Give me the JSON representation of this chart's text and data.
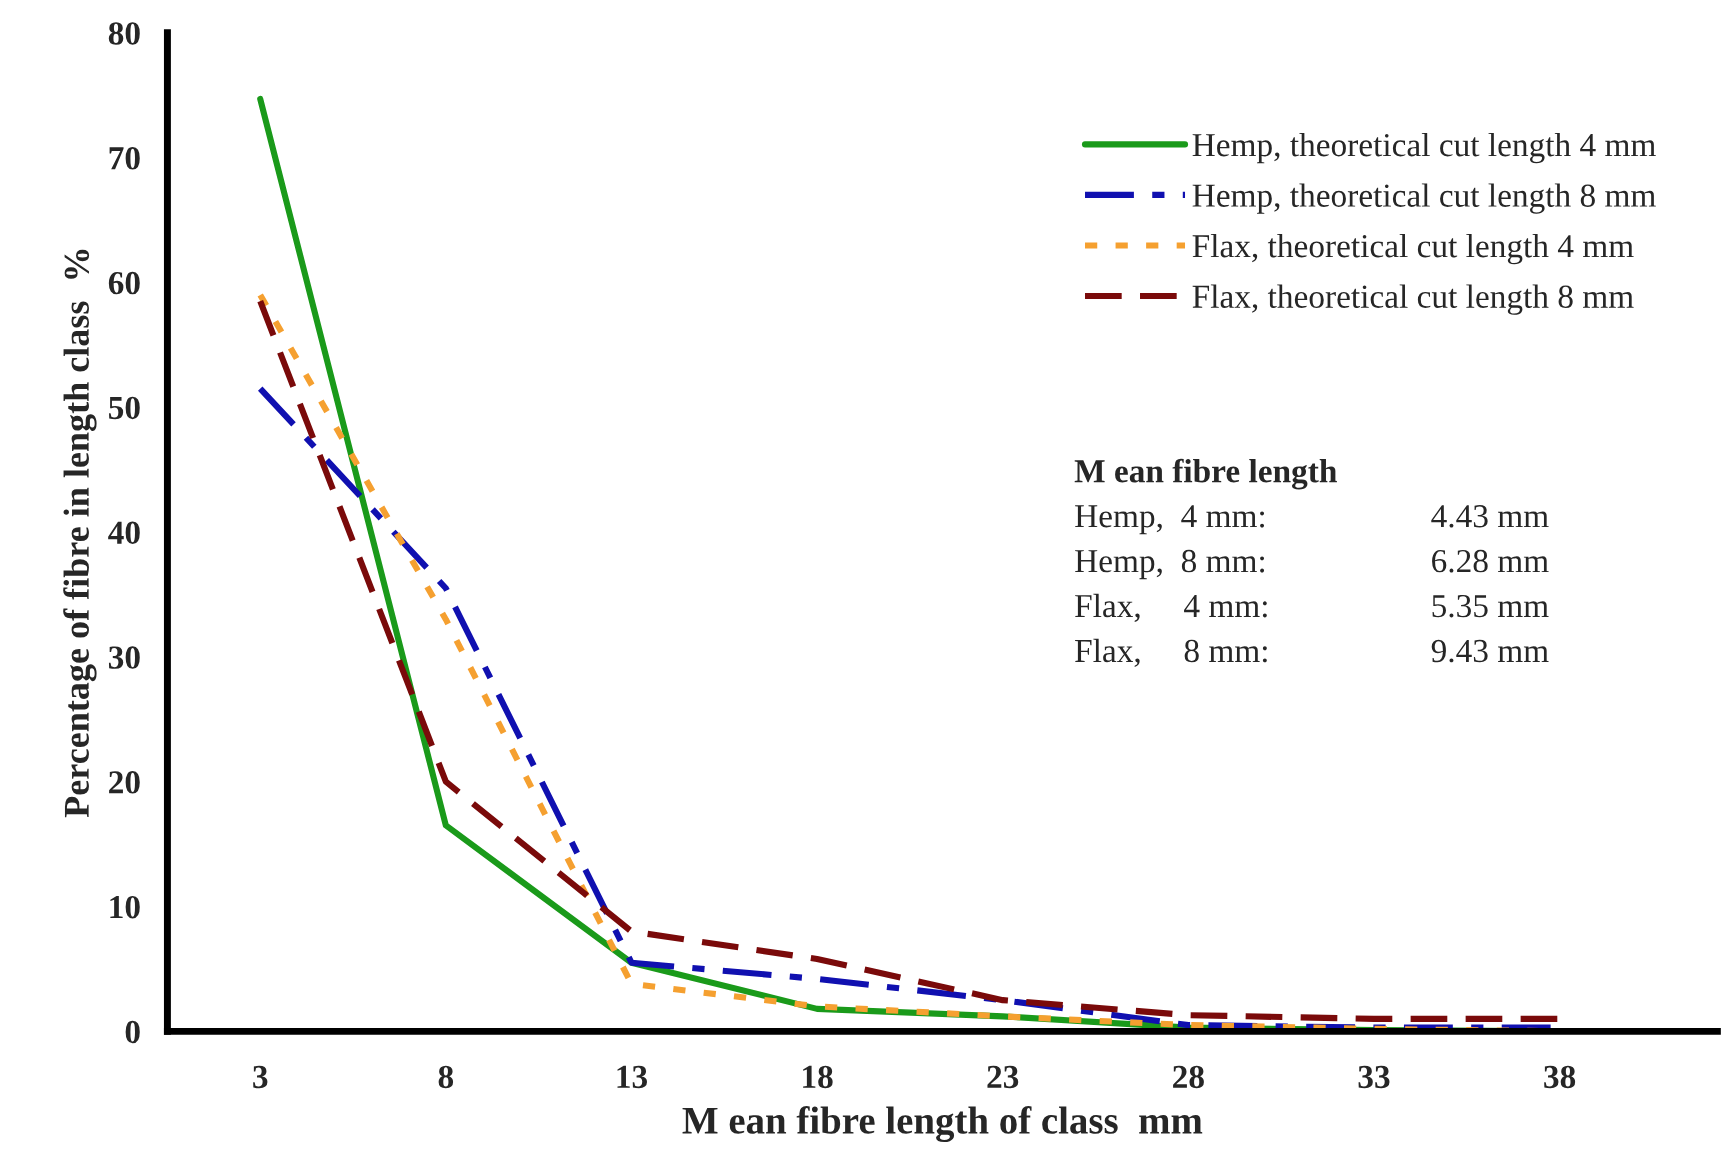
{
  "chart_data": {
    "type": "line",
    "xlabel": "M ean fibre length of class  mm",
    "ylabel": "Percentage of fibre in length class  %",
    "categories": [
      "3",
      "8",
      "13",
      "18",
      "23",
      "28",
      "33",
      "38"
    ],
    "series": [
      {
        "name": "Hemp, theoretical cut length 4 mm",
        "color": "#1a9a1a",
        "line_style": "solid",
        "values": [
          74.7,
          16.5,
          5.5,
          1.8,
          1.2,
          0.3,
          0.1,
          0
        ]
      },
      {
        "name": "Hemp, theoretical cut length 8 mm",
        "color": "#1010b0",
        "line_style": "dashdot",
        "values": [
          51.5,
          35.5,
          5.5,
          4.2,
          2.5,
          0.5,
          0.3,
          0.3
        ]
      },
      {
        "name": "Flax, theoretical cut length 4 mm",
        "color": "#f5a030",
        "line_style": "dotted",
        "values": [
          59,
          33,
          3.8,
          2,
          1.2,
          0.5,
          0.2,
          0
        ]
      },
      {
        "name": "Flax, theoretical cut length 8 mm",
        "color": "#7a0a0a",
        "line_style": "dashed",
        "values": [
          58.5,
          20,
          8,
          5.8,
          2.5,
          1.3,
          1,
          1
        ]
      }
    ],
    "ylim": [
      0,
      80
    ],
    "yticks": [
      0,
      10,
      20,
      30,
      40,
      50,
      60,
      70,
      80
    ],
    "grid": false,
    "legend": "top right",
    "marker": "none",
    "annotations": [
      "M ean fibre length",
      "Hemp,  4 mm:",
      "4.43 mm",
      "Hemp,  8 mm:",
      "6.28 mm",
      "Flax,     4 mm:",
      "5.35 mm",
      "Flax,     8 mm:",
      "9.43 mm"
    ]
  }
}
